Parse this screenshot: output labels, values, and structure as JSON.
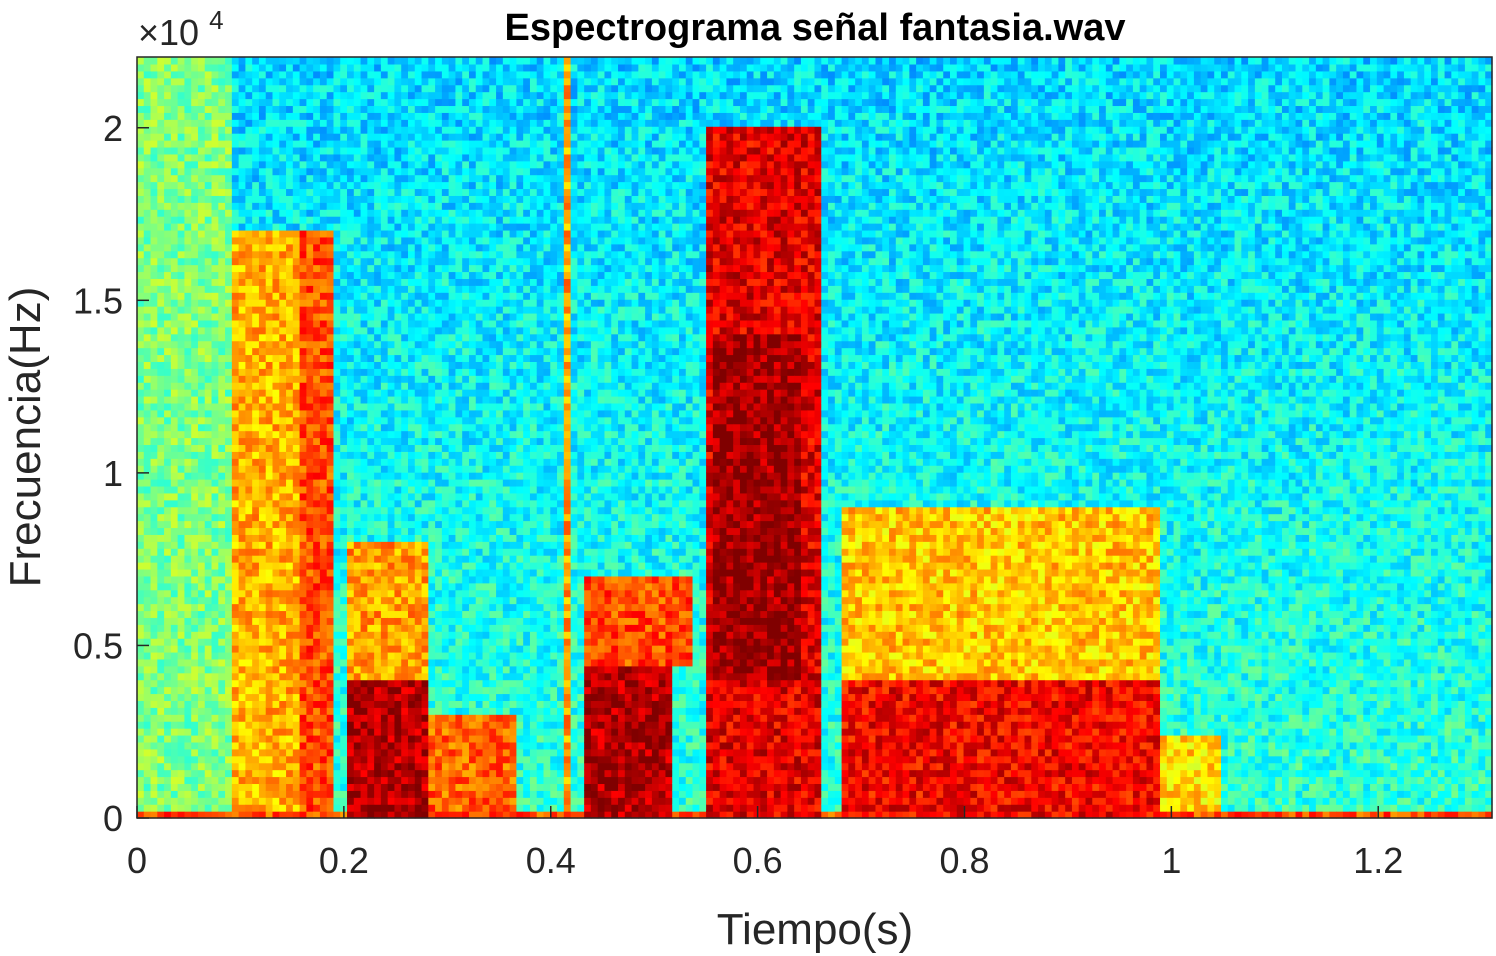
{
  "chart_data": {
    "type": "heatmap",
    "title": "Espectrograma señal fantasia.wav",
    "xlabel": "Tiempo(s)",
    "ylabel": "Frecuencia(Hz)",
    "y_exponent_multiplier": "×10",
    "y_exponent_power": "4",
    "xlim": [
      0,
      1.31
    ],
    "ylim": [
      0,
      22050
    ],
    "x_ticks": [
      0,
      0.2,
      0.4,
      0.6,
      0.8,
      1,
      1.2
    ],
    "x_tick_labels": [
      "0",
      "0.2",
      "0.4",
      "0.6",
      "0.8",
      "1",
      "1.2"
    ],
    "y_ticks": [
      0,
      5000,
      10000,
      15000,
      20000
    ],
    "y_tick_labels": [
      "0",
      "0.5",
      "1",
      "1.5",
      "2"
    ],
    "colormap": "jet",
    "grid": false,
    "legend": "none",
    "energy_regions": [
      {
        "t": [
          0.0,
          0.09
        ],
        "f": [
          0,
          22050
        ],
        "level": 0.5
      },
      {
        "t": [
          0.09,
          0.19
        ],
        "f": [
          0,
          17000
        ],
        "level": 0.7
      },
      {
        "t": [
          0.16,
          0.19
        ],
        "f": [
          0,
          17000
        ],
        "level": 0.8
      },
      {
        "t": [
          0.2,
          0.28
        ],
        "f": [
          0,
          4000
        ],
        "level": 0.95
      },
      {
        "t": [
          0.2,
          0.28
        ],
        "f": [
          4000,
          8000
        ],
        "level": 0.72
      },
      {
        "t": [
          0.28,
          0.37
        ],
        "f": [
          0,
          3000
        ],
        "level": 0.78
      },
      {
        "t": [
          0.41,
          0.42
        ],
        "f": [
          0,
          22050
        ],
        "level": 0.72
      },
      {
        "t": [
          0.43,
          0.52
        ],
        "f": [
          0,
          4500
        ],
        "level": 0.95
      },
      {
        "t": [
          0.43,
          0.54
        ],
        "f": [
          4500,
          7000
        ],
        "level": 0.8
      },
      {
        "t": [
          0.55,
          0.66
        ],
        "f": [
          0,
          20000
        ],
        "level": 0.9
      },
      {
        "t": [
          0.56,
          0.64
        ],
        "f": [
          4000,
          14000
        ],
        "level": 0.97
      },
      {
        "t": [
          0.68,
          0.99
        ],
        "f": [
          0,
          4000
        ],
        "level": 0.88
      },
      {
        "t": [
          0.68,
          0.99
        ],
        "f": [
          4000,
          9000
        ],
        "level": 0.68
      },
      {
        "t": [
          0.99,
          1.05
        ],
        "f": [
          0,
          2500
        ],
        "level": 0.66
      },
      {
        "t": [
          0.0,
          1.31
        ],
        "f": [
          0,
          300
        ],
        "level": 0.8
      }
    ]
  }
}
